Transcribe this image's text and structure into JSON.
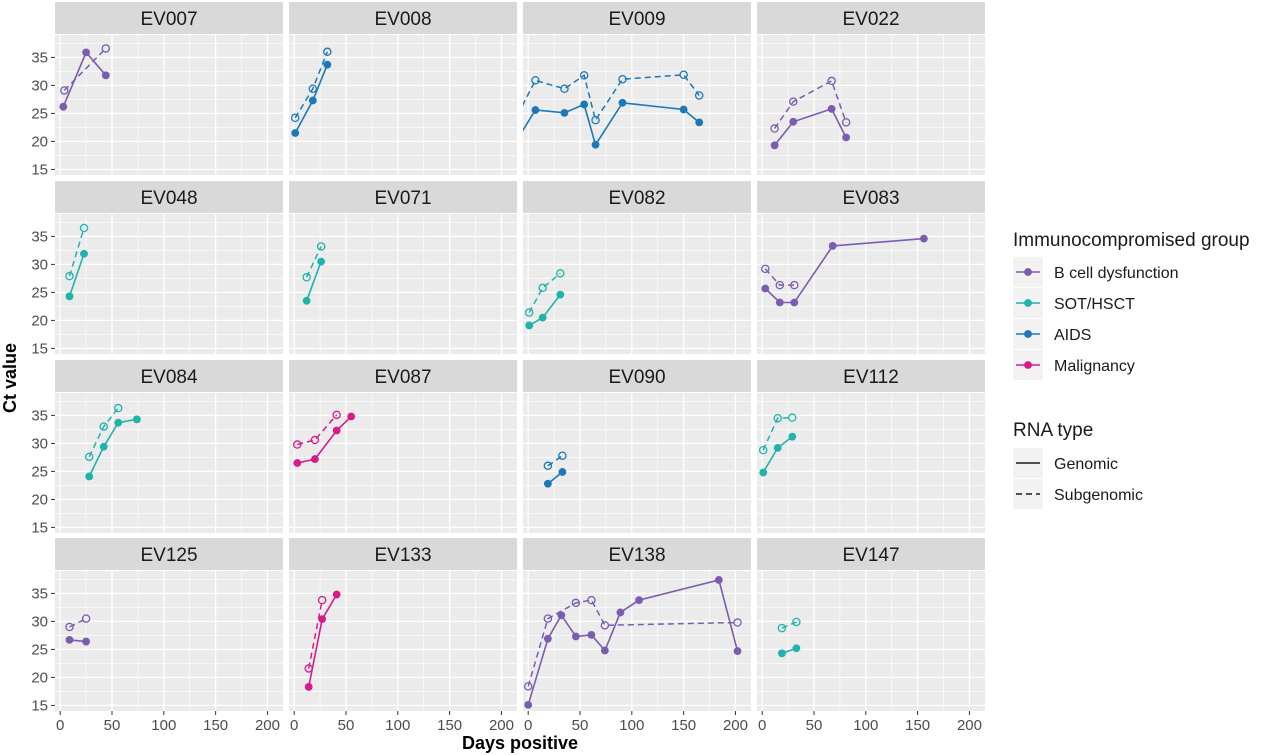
{
  "chart_data": {
    "type": "line",
    "xlabel": "Days positive",
    "ylabel": "Ct value",
    "xlim": [
      -5,
      215
    ],
    "ylim": [
      14,
      39
    ],
    "x_ticks": [
      0,
      50,
      100,
      150,
      200
    ],
    "y_ticks": [
      15,
      20,
      25,
      30,
      35
    ],
    "grid": true,
    "facet_layout": "4 x 4",
    "legend_placement": "right",
    "legend": {
      "color_title": "Immunocompromised group",
      "groups": [
        {
          "name": "B cell dysfunction",
          "color": "#7b5cb0"
        },
        {
          "name": "SOT/HSCT",
          "color": "#1fb3ac"
        },
        {
          "name": "AIDS",
          "color": "#1c78b8"
        },
        {
          "name": "Malignancy",
          "color": "#d81b8c"
        }
      ],
      "linetype_title": "RNA type",
      "linetypes": [
        {
          "name": "Genomic",
          "style": "solid"
        },
        {
          "name": "Subgenomic",
          "style": "dashed"
        }
      ]
    },
    "panels": [
      {
        "title": "EV007",
        "group": "B cell dysfunction",
        "genomic": [
          [
            3,
            26.2
          ],
          [
            25,
            35.9
          ],
          [
            44,
            31.8
          ]
        ],
        "subgenomic": [
          [
            4,
            29.1
          ],
          [
            44,
            36.6
          ]
        ]
      },
      {
        "title": "EV008",
        "group": "AIDS",
        "genomic": [
          [
            1,
            21.5
          ],
          [
            18,
            27.3
          ],
          [
            32,
            33.7
          ]
        ],
        "subgenomic": [
          [
            1,
            24.2
          ],
          [
            18,
            29.4
          ],
          [
            32,
            36.0
          ]
        ]
      },
      {
        "title": "EV009",
        "group": "AIDS",
        "genomic": [
          [
            -10,
            20.5
          ],
          [
            7,
            25.6
          ],
          [
            35,
            25.1
          ],
          [
            54,
            26.6
          ],
          [
            65,
            19.4
          ],
          [
            91,
            26.9
          ],
          [
            150,
            25.7
          ],
          [
            165,
            23.4
          ]
        ],
        "subgenomic": [
          [
            -10,
            24.8
          ],
          [
            7,
            30.9
          ],
          [
            35,
            29.4
          ],
          [
            54,
            31.8
          ],
          [
            65,
            23.8
          ],
          [
            91,
            31.1
          ],
          [
            150,
            31.9
          ],
          [
            165,
            28.2
          ]
        ]
      },
      {
        "title": "EV022",
        "group": "B cell dysfunction",
        "genomic": [
          [
            12,
            19.3
          ],
          [
            30,
            23.5
          ],
          [
            67,
            25.8
          ],
          [
            81,
            20.7
          ]
        ],
        "subgenomic": [
          [
            12,
            22.3
          ],
          [
            30,
            27.1
          ],
          [
            67,
            30.8
          ],
          [
            81,
            23.4
          ]
        ]
      },
      {
        "title": "EV048",
        "group": "SOT/HSCT",
        "genomic": [
          [
            9,
            24.3
          ],
          [
            23,
            31.9
          ]
        ],
        "subgenomic": [
          [
            9,
            27.9
          ],
          [
            23,
            36.5
          ]
        ]
      },
      {
        "title": "EV071",
        "group": "SOT/HSCT",
        "genomic": [
          [
            12,
            23.5
          ],
          [
            26,
            30.5
          ]
        ],
        "subgenomic": [
          [
            12,
            27.7
          ],
          [
            26,
            33.2
          ]
        ]
      },
      {
        "title": "EV082",
        "group": "SOT/HSCT",
        "genomic": [
          [
            1,
            19.1
          ],
          [
            14,
            20.5
          ],
          [
            31,
            24.6
          ]
        ],
        "subgenomic": [
          [
            1,
            21.4
          ],
          [
            14,
            25.8
          ],
          [
            31,
            28.4
          ]
        ]
      },
      {
        "title": "EV083",
        "group": "B cell dysfunction",
        "genomic": [
          [
            3,
            25.7
          ],
          [
            17,
            23.2
          ],
          [
            31,
            23.2
          ],
          [
            68,
            33.3
          ],
          [
            156,
            34.6
          ]
        ],
        "subgenomic": [
          [
            3,
            29.2
          ],
          [
            17,
            26.3
          ],
          [
            31,
            26.3
          ]
        ]
      },
      {
        "title": "EV084",
        "group": "SOT/HSCT",
        "genomic": [
          [
            28,
            24.1
          ],
          [
            42,
            29.4
          ],
          [
            56,
            33.7
          ],
          [
            74,
            34.3
          ]
        ],
        "subgenomic": [
          [
            28,
            27.6
          ],
          [
            42,
            33.0
          ],
          [
            56,
            36.3
          ]
        ]
      },
      {
        "title": "EV087",
        "group": "Malignancy",
        "genomic": [
          [
            3,
            26.5
          ],
          [
            20,
            27.2
          ],
          [
            41,
            32.3
          ],
          [
            55,
            34.8
          ]
        ],
        "subgenomic": [
          [
            3,
            29.8
          ],
          [
            20,
            30.6
          ],
          [
            41,
            35.1
          ]
        ]
      },
      {
        "title": "EV090",
        "group": "AIDS",
        "genomic": [
          [
            19,
            22.8
          ],
          [
            33,
            24.9
          ]
        ],
        "subgenomic": [
          [
            19,
            26.0
          ],
          [
            33,
            27.8
          ]
        ]
      },
      {
        "title": "EV112",
        "group": "SOT/HSCT",
        "genomic": [
          [
            1,
            24.8
          ],
          [
            15,
            29.2
          ],
          [
            29,
            31.2
          ]
        ],
        "subgenomic": [
          [
            1,
            28.8
          ],
          [
            15,
            34.5
          ],
          [
            29,
            34.6
          ]
        ]
      },
      {
        "title": "EV125",
        "group": "B cell dysfunction",
        "genomic": [
          [
            9,
            26.7
          ],
          [
            25,
            26.4
          ]
        ],
        "subgenomic": [
          [
            9,
            29.0
          ],
          [
            25,
            30.5
          ]
        ]
      },
      {
        "title": "EV133",
        "group": "Malignancy",
        "genomic": [
          [
            14,
            18.3
          ],
          [
            27,
            30.4
          ],
          [
            41,
            34.8
          ]
        ],
        "subgenomic": [
          [
            14,
            21.6
          ],
          [
            27,
            33.8
          ]
        ]
      },
      {
        "title": "EV138",
        "group": "B cell dysfunction",
        "genomic": [
          [
            0,
            15.1
          ],
          [
            19,
            26.9
          ],
          [
            32,
            31.1
          ],
          [
            46,
            27.3
          ],
          [
            61,
            27.6
          ],
          [
            74,
            24.8
          ],
          [
            89,
            31.6
          ],
          [
            107,
            33.8
          ],
          [
            184,
            37.4
          ],
          [
            202,
            24.7
          ]
        ],
        "subgenomic": [
          [
            0,
            18.4
          ],
          [
            19,
            30.5
          ],
          [
            46,
            33.3
          ],
          [
            61,
            33.8
          ],
          [
            74,
            29.3
          ],
          [
            202,
            29.8
          ]
        ]
      },
      {
        "title": "EV147",
        "group": "SOT/HSCT",
        "genomic": [
          [
            19,
            24.3
          ],
          [
            33,
            25.2
          ]
        ],
        "subgenomic": [
          [
            19,
            28.8
          ],
          [
            33,
            29.9
          ]
        ]
      }
    ]
  }
}
